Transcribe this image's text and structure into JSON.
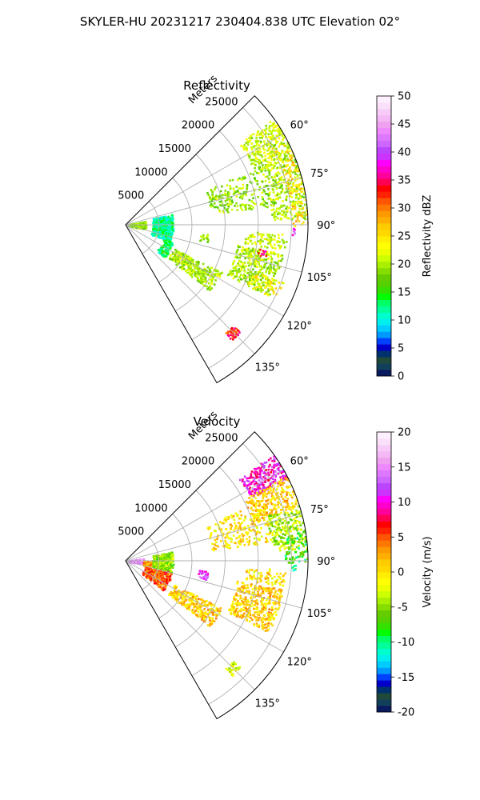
{
  "figure": {
    "suptitle": "SKYLER-HU  20231217  230404.838 UTC Elevation 02°"
  },
  "chart_data": [
    {
      "type": "heatmap",
      "subtype": "polar-sector",
      "title": "Reflectivity",
      "radial_label": "Meters",
      "radial_ticks": [
        5000,
        10000,
        15000,
        20000,
        25000
      ],
      "rmax": 27500,
      "theta_range_deg": [
        45,
        150
      ],
      "angle_ticks_deg": [
        60,
        75,
        90,
        105,
        120,
        135
      ],
      "angle_tick_labels": [
        "60°",
        "75°",
        "90°",
        "105°",
        "120°",
        "135°"
      ],
      "grid": true,
      "colorbar": {
        "label": "Reflectivity dBZ",
        "vmin": 0,
        "vmax": 50,
        "ticks": [
          0,
          5,
          10,
          15,
          20,
          25,
          30,
          35,
          40,
          45,
          50
        ],
        "colors": [
          "#0a1a5e",
          "#123f5a",
          "#1f4a3a",
          "#00306e",
          "#0000c8",
          "#0040ff",
          "#0099ff",
          "#00ccff",
          "#00eeee",
          "#00ffcc",
          "#00ff99",
          "#00ff66",
          "#00ff00",
          "#33e000",
          "#55d000",
          "#66cc00",
          "#88dd00",
          "#aaee00",
          "#ccff00",
          "#eeff00",
          "#ffff00",
          "#ffee00",
          "#ffd800",
          "#ffcc00",
          "#ffb000",
          "#ff9900",
          "#ff7700",
          "#ff5500",
          "#ff2200",
          "#ff0000",
          "#ff0055",
          "#ff0099",
          "#ff00cc",
          "#ff00ff",
          "#cc33ff",
          "#bb44ff",
          "#cc66ff",
          "#dd77ff",
          "#ee88ff",
          "#f0a0f0",
          "#f4b8f4",
          "#f8ccf8",
          "#fbe0fb",
          "#fdf0fd"
        ]
      },
      "echoes": [
        {
          "r": [
            21000,
            27500
          ],
          "t": [
            54,
            67
          ],
          "v": 21,
          "d": 0.55
        },
        {
          "r": [
            22000,
            27500
          ],
          "t": [
            67,
            88
          ],
          "v": 20,
          "d": 0.45
        },
        {
          "r": [
            25000,
            27500
          ],
          "t": [
            62,
            90
          ],
          "v": 26,
          "d": 0.25
        },
        {
          "r": [
            13000,
            22000
          ],
          "t": [
            66,
            82
          ],
          "v": 19,
          "d": 0.25
        },
        {
          "r": [
            4000,
            7000
          ],
          "t": [
            76,
            110
          ],
          "v": 12,
          "d": 0.55
        },
        {
          "r": [
            6000,
            7500
          ],
          "t": [
            110,
            130
          ],
          "v": 13,
          "d": 0.45
        },
        {
          "r": [
            400,
            2800
          ],
          "t": [
            78,
            102
          ],
          "v": 19,
          "d": 0.6
        },
        {
          "r": [
            8000,
            16000
          ],
          "t": [
            116,
            128
          ],
          "v": 20,
          "d": 0.45
        },
        {
          "r": [
            17000,
            24000
          ],
          "t": [
            100,
            116
          ],
          "v": 20,
          "d": 0.5
        },
        {
          "r": [
            18000,
            24000
          ],
          "t": [
            93,
            99
          ],
          "v": 21,
          "d": 0.35
        },
        {
          "r": [
            20000,
            25000
          ],
          "t": [
            110,
            116
          ],
          "v": 24,
          "d": 0.3
        },
        {
          "r": [
            11000,
            12500
          ],
          "t": [
            96,
            102
          ],
          "v": 19,
          "d": 0.35
        },
        {
          "r": [
            22000,
            23500
          ],
          "t": [
            133,
            137
          ],
          "v": 33,
          "d": 0.8
        },
        {
          "r": [
            20000,
            21500
          ],
          "t": [
            100,
            103
          ],
          "v": 35,
          "d": 0.4
        },
        {
          "r": [
            25000,
            25500
          ],
          "t": [
            91,
            93
          ],
          "v": 40,
          "d": 0.9
        }
      ]
    },
    {
      "type": "heatmap",
      "subtype": "polar-sector",
      "title": "Velocity",
      "radial_label": "Meters",
      "radial_ticks": [
        5000,
        10000,
        15000,
        20000,
        25000
      ],
      "rmax": 27500,
      "theta_range_deg": [
        45,
        150
      ],
      "angle_ticks_deg": [
        60,
        75,
        90,
        105,
        120,
        135
      ],
      "angle_tick_labels": [
        "60°",
        "75°",
        "90°",
        "105°",
        "120°",
        "135°"
      ],
      "grid": true,
      "colorbar": {
        "label": "Velocity (m/s)",
        "vmin": -20,
        "vmax": 20,
        "ticks": [
          -20,
          -15,
          -10,
          -5,
          0,
          5,
          10,
          15,
          20
        ],
        "colors": [
          "#0a1a5e",
          "#123f5a",
          "#1f4a3a",
          "#00306e",
          "#0000c8",
          "#0040ff",
          "#0099ff",
          "#00ccff",
          "#00eeee",
          "#00ffcc",
          "#00ff99",
          "#00ff66",
          "#00ff00",
          "#33e000",
          "#55d000",
          "#66cc00",
          "#88dd00",
          "#aaee00",
          "#ccff00",
          "#eeff00",
          "#ffff00",
          "#ffee00",
          "#ffd800",
          "#ffcc00",
          "#ffb000",
          "#ff9900",
          "#ff7700",
          "#ff5500",
          "#ff2200",
          "#ff0000",
          "#ff0055",
          "#ff0099",
          "#ff00cc",
          "#ff00ff",
          "#cc33ff",
          "#bb44ff",
          "#cc66ff",
          "#dd77ff",
          "#ee88ff",
          "#f0a0f0",
          "#f4b8f4",
          "#f8ccf8",
          "#fbe0fb",
          "#fdf0fd"
        ]
      },
      "echoes": [
        {
          "r": [
            21000,
            27500
          ],
          "t": [
            54,
            63
          ],
          "v": 10,
          "d": 0.6
        },
        {
          "r": [
            20000,
            27500
          ],
          "t": [
            62,
            72
          ],
          "v": 1,
          "d": 0.5
        },
        {
          "r": [
            22000,
            27500
          ],
          "t": [
            72,
            86
          ],
          "v": -4,
          "d": 0.5
        },
        {
          "r": [
            24000,
            27500
          ],
          "t": [
            80,
            90
          ],
          "v": -8,
          "d": 0.35
        },
        {
          "r": [
            13000,
            22000
          ],
          "t": [
            66,
            82
          ],
          "v": 0,
          "d": 0.25
        },
        {
          "r": [
            400,
            2600
          ],
          "t": [
            80,
            100
          ],
          "v": 15,
          "d": 0.6
        },
        {
          "r": [
            2600,
            4500
          ],
          "t": [
            86,
            104
          ],
          "v": 3,
          "d": 0.35
        },
        {
          "r": [
            4000,
            7000
          ],
          "t": [
            78,
            104
          ],
          "v": -5,
          "d": 0.55
        },
        {
          "r": [
            3000,
            7000
          ],
          "t": [
            104,
            128
          ],
          "v": 5,
          "d": 0.4
        },
        {
          "r": [
            8000,
            16000
          ],
          "t": [
            116,
            128
          ],
          "v": 1,
          "d": 0.45
        },
        {
          "r": [
            17000,
            24000
          ],
          "t": [
            100,
            116
          ],
          "v": 1,
          "d": 0.5
        },
        {
          "r": [
            18000,
            24000
          ],
          "t": [
            93,
            99
          ],
          "v": 0,
          "d": 0.35
        },
        {
          "r": [
            11000,
            12500
          ],
          "t": [
            97,
            103
          ],
          "v": 12,
          "d": 0.6
        },
        {
          "r": [
            22000,
            23500
          ],
          "t": [
            133,
            137
          ],
          "v": -3,
          "d": 0.8
        },
        {
          "r": [
            25000,
            25500
          ],
          "t": [
            91,
            93
          ],
          "v": -9,
          "d": 0.9
        }
      ]
    }
  ]
}
